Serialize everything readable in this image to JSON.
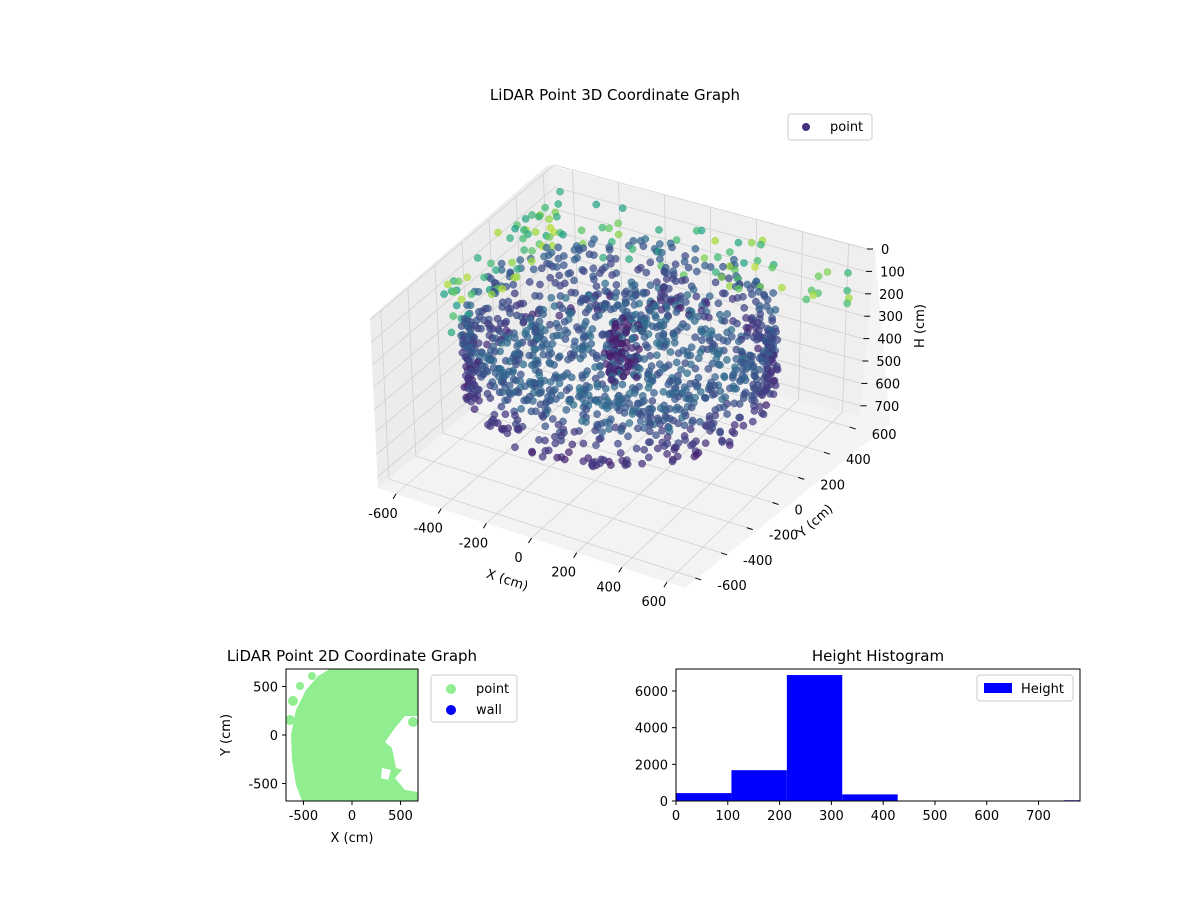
{
  "chart_data": [
    {
      "type": "scatter",
      "projection": "3d",
      "title": "LiDAR Point 3D Coordinate Graph",
      "xlabel": "X (cm)",
      "ylabel": "Y (cm)",
      "zlabel": "H (cm)",
      "xlim": [
        -680,
        680
      ],
      "ylim": [
        -680,
        680
      ],
      "zlim": [
        750,
        0
      ],
      "xticks": [
        "-600",
        "-400",
        "-200",
        "0",
        "200",
        "400",
        "600"
      ],
      "yticks": [
        "-600",
        "-400",
        "-200",
        "0",
        "200",
        "400",
        "600"
      ],
      "zticks": [
        "0",
        "100",
        "200",
        "300",
        "400",
        "500",
        "600",
        "700"
      ],
      "grid": true,
      "colormap": "viridis",
      "legend": {
        "placement": "top-right",
        "entries": [
          {
            "name": "point",
            "color": "#46327e"
          }
        ]
      },
      "series": [
        {
          "name": "point",
          "description_shapes": [
            {
              "shape": "ring",
              "radius": 600,
              "h_range": [
                120,
                450
              ]
            },
            {
              "shape": "scattered-interior",
              "h_range": [
                250,
                350
              ]
            },
            {
              "shape": "outer-posts",
              "h_range": [
                50,
                330
              ]
            }
          ]
        }
      ]
    },
    {
      "type": "scatter",
      "title": "LiDAR Point 2D Coordinate Graph",
      "xlabel": "X (cm)",
      "ylabel": "Y (cm)",
      "xlim": [
        -680,
        680
      ],
      "ylim": [
        -680,
        680
      ],
      "xticks": [
        "-500",
        "0",
        "500"
      ],
      "yticks": [
        "-500",
        "0",
        "500"
      ],
      "legend": {
        "placement": "outside-right",
        "entries": [
          {
            "name": "point",
            "color": "#90ee90"
          },
          {
            "name": "wall",
            "color": "#0000ff"
          }
        ]
      }
    },
    {
      "type": "bar",
      "title": "Height Histogram",
      "xlim": [
        0,
        780
      ],
      "ylim": [
        0,
        7200
      ],
      "xticks": [
        "0",
        "100",
        "200",
        "300",
        "400",
        "500",
        "600",
        "700"
      ],
      "yticks": [
        "0",
        "2000",
        "4000",
        "6000"
      ],
      "bin_edges": [
        0,
        107,
        214,
        321,
        428,
        535,
        642,
        749,
        856
      ],
      "values": [
        430,
        1680,
        6870,
        360,
        0,
        0,
        0,
        40
      ],
      "legend": {
        "placement": "top-right",
        "entries": [
          {
            "name": "Height",
            "color": "#0000ff"
          }
        ]
      }
    }
  ]
}
